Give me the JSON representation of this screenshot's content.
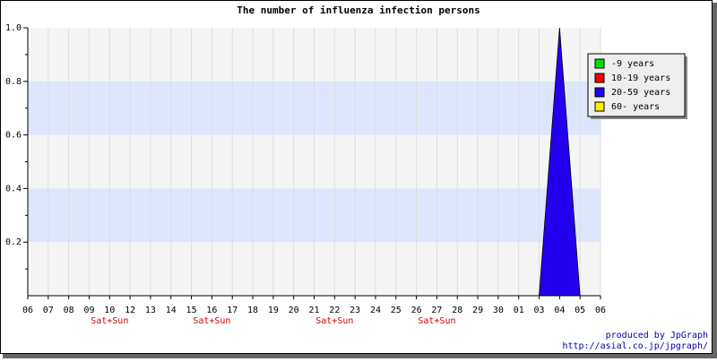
{
  "chart_data": {
    "type": "area",
    "title": "The number of influenza infection persons",
    "categories": [
      "06",
      "07",
      "08",
      "09",
      "10",
      "12",
      "13",
      "14",
      "15",
      "16",
      "17",
      "18",
      "19",
      "20",
      "21",
      "22",
      "23",
      "24",
      "25",
      "26",
      "27",
      "28",
      "29",
      "30",
      "01",
      "03",
      "04",
      "05",
      "06"
    ],
    "x_sublabels": [
      null,
      null,
      null,
      null,
      "Sat+Sun",
      null,
      null,
      null,
      null,
      "Sat+Sun",
      null,
      null,
      null,
      null,
      null,
      "Sat+Sun",
      null,
      null,
      null,
      null,
      "Sat+Sun",
      null,
      null,
      null,
      null,
      null,
      null,
      null,
      null
    ],
    "series": [
      {
        "name": "-9 years",
        "color": "#00dd00",
        "values": [
          0,
          0,
          0,
          0,
          0,
          0,
          0,
          0,
          0,
          0,
          0,
          0,
          0,
          0,
          0,
          0,
          0,
          0,
          0,
          0,
          0,
          0,
          0,
          0,
          0,
          0,
          0,
          0,
          0
        ]
      },
      {
        "name": "10-19 years",
        "color": "#ee0000",
        "values": [
          0,
          0,
          0,
          0,
          0,
          0,
          0,
          0,
          0,
          0,
          0,
          0,
          0,
          0,
          0,
          0,
          0,
          0,
          0,
          0,
          0,
          0,
          0,
          0,
          0,
          0,
          0,
          0,
          0
        ]
      },
      {
        "name": "20-59 years",
        "color": "#2200ee",
        "values": [
          0,
          0,
          0,
          0,
          0,
          0,
          0,
          0,
          0,
          0,
          0,
          0,
          0,
          0,
          0,
          0,
          0,
          0,
          0,
          0,
          0,
          0,
          0,
          0,
          0,
          0,
          1,
          0,
          0
        ]
      },
      {
        "name": "60- years",
        "color": "#ffee00",
        "values": [
          0,
          0,
          0,
          0,
          0,
          0,
          0,
          0,
          0,
          0,
          0,
          0,
          0,
          0,
          0,
          0,
          0,
          0,
          0,
          0,
          0,
          0,
          0,
          0,
          0,
          0,
          0,
          0,
          0
        ]
      }
    ],
    "ylim": [
      0,
      1
    ],
    "yticks": [
      0.2,
      0.4,
      0.6,
      0.8,
      {
        "value": 1,
        "label": "1.0"
      }
    ],
    "grid": true,
    "legend": "top-right",
    "footer": [
      "produced by JpGraph",
      "http://asial.co.jp/jpgraph/"
    ]
  }
}
